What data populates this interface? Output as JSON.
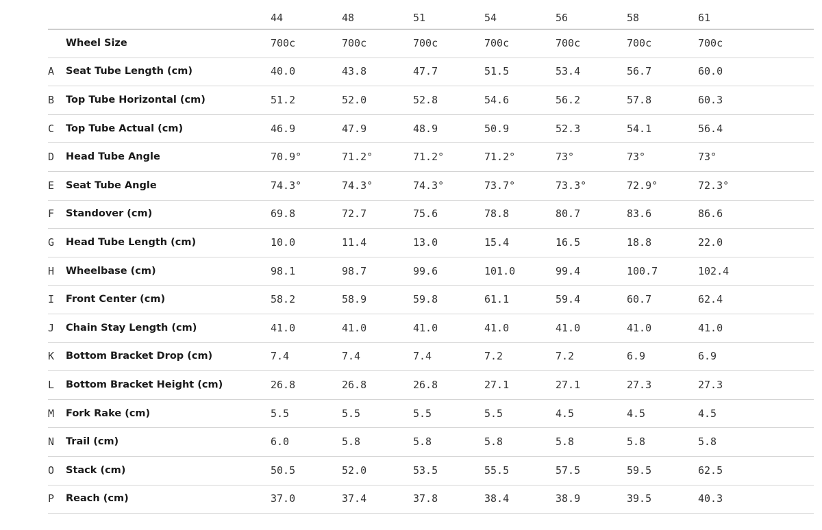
{
  "table": {
    "sizes": [
      "44",
      "48",
      "51",
      "54",
      "56",
      "58",
      "61"
    ],
    "rows": [
      {
        "label": "Wheel Size",
        "values": [
          "700c",
          "700c",
          "700c",
          "700c",
          "700c",
          "700c",
          "700c"
        ]
      },
      {
        "letter": "A",
        "label": "Seat Tube Length (cm)",
        "values": [
          "40.0",
          "43.8",
          "47.7",
          "51.5",
          "53.4",
          "56.7",
          "60.0"
        ]
      },
      {
        "letter": "B",
        "label": "Top Tube Horizontal (cm)",
        "values": [
          "51.2",
          "52.0",
          "52.8",
          "54.6",
          "56.2",
          "57.8",
          "60.3"
        ]
      },
      {
        "letter": "C",
        "label": "Top Tube Actual (cm)",
        "values": [
          "46.9",
          "47.9",
          "48.9",
          "50.9",
          "52.3",
          "54.1",
          "56.4"
        ]
      },
      {
        "letter": "D",
        "label": "Head Tube Angle",
        "values": [
          "70.9°",
          "71.2°",
          "71.2°",
          "71.2°",
          "73°",
          "73°",
          "73°"
        ]
      },
      {
        "letter": "E",
        "label": "Seat Tube Angle",
        "values": [
          "74.3°",
          "74.3°",
          "74.3°",
          "73.7°",
          "73.3°",
          "72.9°",
          "72.3°"
        ]
      },
      {
        "letter": "F",
        "label": "Standover (cm)",
        "values": [
          "69.8",
          "72.7",
          "75.6",
          "78.8",
          "80.7",
          "83.6",
          "86.6"
        ]
      },
      {
        "letter": "G",
        "label": "Head Tube Length (cm)",
        "values": [
          "10.0",
          "11.4",
          "13.0",
          "15.4",
          "16.5",
          "18.8",
          "22.0"
        ]
      },
      {
        "letter": "H",
        "label": "Wheelbase (cm)",
        "values": [
          "98.1",
          "98.7",
          "99.6",
          "101.0",
          "99.4",
          "100.7",
          "102.4"
        ]
      },
      {
        "letter": "I",
        "label": "Front Center (cm)",
        "values": [
          "58.2",
          "58.9",
          "59.8",
          "61.1",
          "59.4",
          "60.7",
          "62.4"
        ]
      },
      {
        "letter": "J",
        "label": "Chain Stay Length (cm)",
        "values": [
          "41.0",
          "41.0",
          "41.0",
          "41.0",
          "41.0",
          "41.0",
          "41.0"
        ]
      },
      {
        "letter": "K",
        "label": "Bottom Bracket Drop (cm)",
        "values": [
          "7.4",
          "7.4",
          "7.4",
          "7.2",
          "7.2",
          "6.9",
          "6.9"
        ]
      },
      {
        "letter": "L",
        "label": "Bottom Bracket Height (cm)",
        "values": [
          "26.8",
          "26.8",
          "26.8",
          "27.1",
          "27.1",
          "27.3",
          "27.3"
        ]
      },
      {
        "letter": "M",
        "label": "Fork Rake (cm)",
        "values": [
          "5.5",
          "5.5",
          "5.5",
          "5.5",
          "4.5",
          "4.5",
          "4.5"
        ]
      },
      {
        "letter": "N",
        "label": "Trail (cm)",
        "values": [
          "6.0",
          "5.8",
          "5.8",
          "5.8",
          "5.8",
          "5.8",
          "5.8"
        ]
      },
      {
        "letter": "O",
        "label": "Stack (cm)",
        "values": [
          "50.5",
          "52.0",
          "53.5",
          "55.5",
          "57.5",
          "59.5",
          "62.5"
        ]
      },
      {
        "letter": "P",
        "label": "Reach (cm)",
        "values": [
          "37.0",
          "37.4",
          "37.8",
          "38.4",
          "38.9",
          "39.5",
          "40.3"
        ]
      }
    ]
  }
}
